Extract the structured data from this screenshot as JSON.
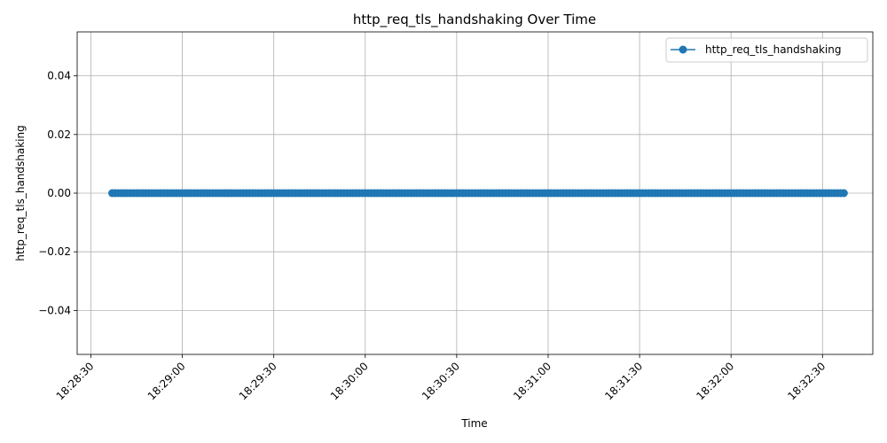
{
  "chart_data": {
    "type": "line",
    "title": "http_req_tls_handshaking Over Time",
    "xlabel": "Time",
    "ylabel": "http_req_tls_handshaking",
    "x_ticks": [
      "18:28:30",
      "18:29:00",
      "18:29:30",
      "18:30:00",
      "18:30:30",
      "18:31:00",
      "18:31:30",
      "18:32:00",
      "18:32:30"
    ],
    "y_ticks": [
      "0.04",
      "0.02",
      "0.00",
      "−0.02",
      "−0.04"
    ],
    "y_tick_values": [
      0.04,
      0.02,
      0.0,
      -0.02,
      -0.04
    ],
    "ylim": [
      -0.055,
      0.055
    ],
    "xlim": [
      "18:28:25.5",
      "18:32:46.5"
    ],
    "grid": true,
    "legend_position": "top-right",
    "series": [
      {
        "name": "http_req_tls_handshaking",
        "color": "#1f77b4",
        "marker": "circle",
        "x_start": "18:28:37",
        "x_end": "18:32:37",
        "x_step_seconds": 1,
        "value": 0.0
      }
    ]
  }
}
